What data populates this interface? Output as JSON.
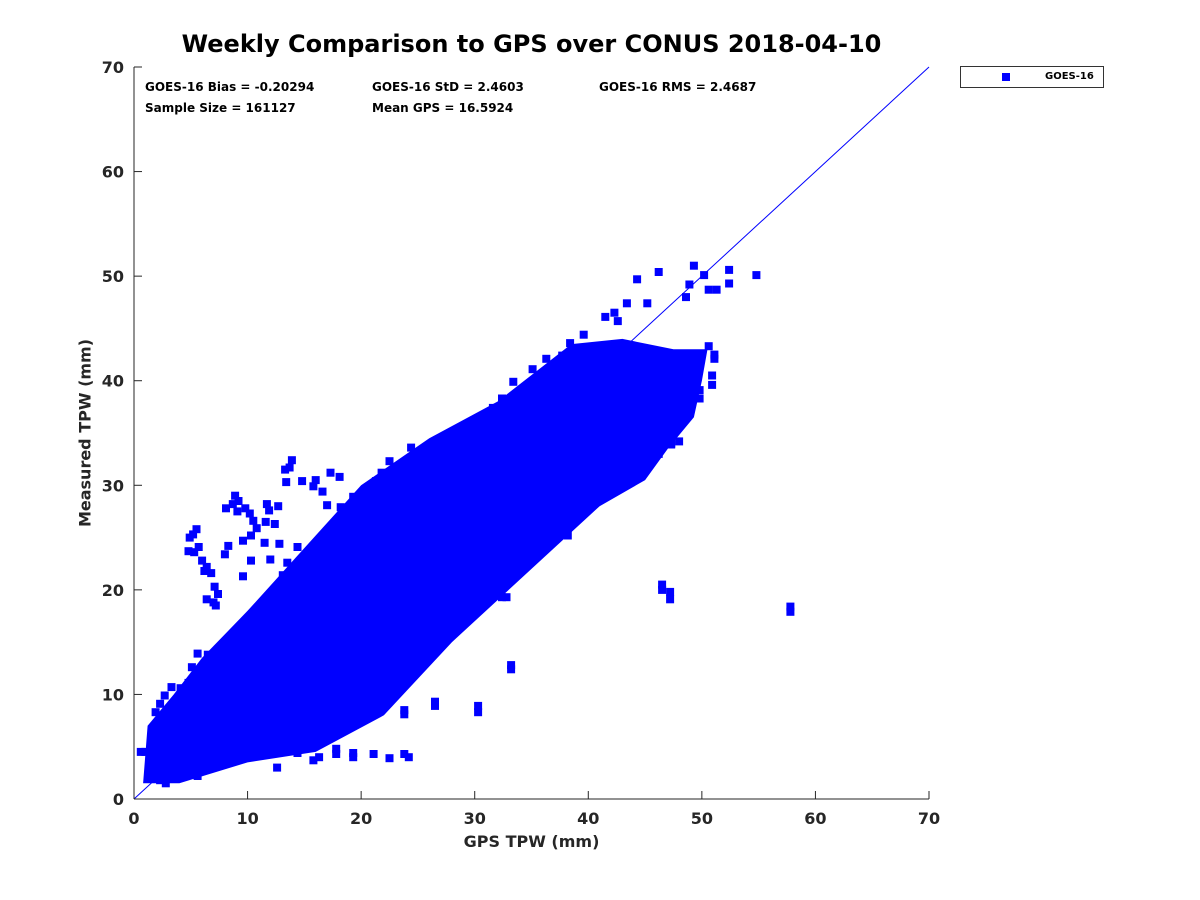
{
  "chart_data": {
    "type": "scatter",
    "title": "Weekly Comparison to GPS over CONUS 2018-04-10",
    "xlabel": "GPS TPW (mm)",
    "ylabel": "Measured TPW (mm)",
    "xlim": [
      0,
      70
    ],
    "ylim": [
      0,
      70
    ],
    "xticks": [
      0,
      10,
      20,
      30,
      40,
      50,
      60,
      70
    ],
    "yticks": [
      0,
      10,
      20,
      30,
      40,
      50,
      60,
      70
    ],
    "grid": false,
    "legend_position": "top-right, outside plot",
    "series": [
      {
        "name": "GOES-16",
        "color": "#0000ff",
        "marker": "square",
        "sample_size": 161127,
        "bias": -0.20294,
        "std": 2.4603
      }
    ],
    "reference_line": {
      "x": [
        0,
        70
      ],
      "y": [
        0,
        70
      ],
      "color": "#0000ff"
    },
    "outliers": [
      [
        57.8,
        17.9
      ],
      [
        57.8,
        18.4
      ],
      [
        46.5,
        20.0
      ],
      [
        46.5,
        20.5
      ],
      [
        47.2,
        19.8
      ],
      [
        47.2,
        19.1
      ],
      [
        33.2,
        12.4
      ],
      [
        33.2,
        12.8
      ],
      [
        30.3,
        8.3
      ],
      [
        30.3,
        8.9
      ],
      [
        26.5,
        8.9
      ],
      [
        26.5,
        9.3
      ],
      [
        23.8,
        8.1
      ],
      [
        23.8,
        8.5
      ],
      [
        20.3,
        7.6
      ],
      [
        19.3,
        9.8
      ],
      [
        24.2,
        4.0
      ],
      [
        23.8,
        4.3
      ],
      [
        22.5,
        3.9
      ],
      [
        21.1,
        4.3
      ],
      [
        19.3,
        4.0
      ],
      [
        19.3,
        4.4
      ],
      [
        17.8,
        4.3
      ],
      [
        17.8,
        4.8
      ],
      [
        16.3,
        4.0
      ],
      [
        15.8,
        3.7
      ],
      [
        14.4,
        4.4
      ],
      [
        13.1,
        5.2
      ],
      [
        12.6,
        3.0
      ],
      [
        1.0,
        4.5
      ],
      [
        0.6,
        4.5
      ],
      [
        1.8,
        5.8
      ],
      [
        5.6,
        2.2
      ],
      [
        54.8,
        50.1
      ],
      [
        52.4,
        50.6
      ],
      [
        52.4,
        49.3
      ],
      [
        49.3,
        51.0
      ],
      [
        50.2,
        50.1
      ],
      [
        46.2,
        50.4
      ],
      [
        44.3,
        49.7
      ],
      [
        51.3,
        48.7
      ],
      [
        50.6,
        48.7
      ],
      [
        48.6,
        48.0
      ],
      [
        48.9,
        49.2
      ],
      [
        45.2,
        47.4
      ],
      [
        50.6,
        43.3
      ],
      [
        51.1,
        42.1
      ],
      [
        50.9,
        40.5
      ],
      [
        50.9,
        39.6
      ],
      [
        51.1,
        42.5
      ],
      [
        49.8,
        39.1
      ],
      [
        49.8,
        38.3
      ],
      [
        46.2,
        36.1
      ],
      [
        48.7,
        39.4
      ],
      [
        48.0,
        34.2
      ],
      [
        47.3,
        34.0
      ],
      [
        46.2,
        33.0
      ],
      [
        44.0,
        32.6
      ],
      [
        47.3,
        33.9
      ],
      [
        42.0,
        29.3
      ],
      [
        41.5,
        30.1
      ],
      [
        40.4,
        30.4
      ],
      [
        39.6,
        29.9
      ],
      [
        38.5,
        28.3
      ],
      [
        36.3,
        27.5
      ],
      [
        38.2,
        25.2
      ],
      [
        36.9,
        25.8
      ],
      [
        36.3,
        26.3
      ],
      [
        35.3,
        25.3
      ],
      [
        33.1,
        23.8
      ],
      [
        33.8,
        23.5
      ],
      [
        32.3,
        21.8
      ],
      [
        33.2,
        21.3
      ],
      [
        32.4,
        19.3
      ],
      [
        32.8,
        19.3
      ],
      [
        31.6,
        19.4
      ],
      [
        30.7,
        18.8
      ],
      [
        28.1,
        20.5
      ],
      [
        27.2,
        19.5
      ],
      [
        26.1,
        20.1
      ],
      [
        26.6,
        19.1
      ],
      [
        25.3,
        19.3
      ],
      [
        26.3,
        17.5
      ],
      [
        26.3,
        16.9
      ],
      [
        26.3,
        16.6
      ],
      [
        26.3,
        15.9
      ],
      [
        23.9,
        16.6
      ],
      [
        24.6,
        15.5
      ],
      [
        22.1,
        15.7
      ],
      [
        20.7,
        13.5
      ],
      [
        21.1,
        15.1
      ],
      [
        20.3,
        13.9
      ],
      [
        19.1,
        11.4
      ],
      [
        18.0,
        9.8
      ],
      [
        17.4,
        11.6
      ],
      [
        16.8,
        10.3
      ],
      [
        16.3,
        10.1
      ],
      [
        15.1,
        9.0
      ],
      [
        15.8,
        9.9
      ],
      [
        14.6,
        8.4
      ],
      [
        5.2,
        25.3
      ],
      [
        4.9,
        25.0
      ],
      [
        5.5,
        25.8
      ],
      [
        4.8,
        23.7
      ],
      [
        5.3,
        23.6
      ],
      [
        5.7,
        24.1
      ],
      [
        6.0,
        22.8
      ],
      [
        6.4,
        22.2
      ],
      [
        6.2,
        21.8
      ],
      [
        6.8,
        21.6
      ],
      [
        7.1,
        20.3
      ],
      [
        7.4,
        19.6
      ],
      [
        6.4,
        19.1
      ],
      [
        7.2,
        18.5
      ],
      [
        7.0,
        18.8
      ],
      [
        8.1,
        27.8
      ],
      [
        8.7,
        28.2
      ],
      [
        9.1,
        27.5
      ],
      [
        8.9,
        29.0
      ],
      [
        9.2,
        28.5
      ],
      [
        9.8,
        27.8
      ],
      [
        10.2,
        27.3
      ],
      [
        10.5,
        26.6
      ],
      [
        10.3,
        25.2
      ],
      [
        10.8,
        25.9
      ],
      [
        11.7,
        28.2
      ],
      [
        11.9,
        27.6
      ],
      [
        11.6,
        26.5
      ],
      [
        12.7,
        28.0
      ],
      [
        12.4,
        26.3
      ],
      [
        13.4,
        30.3
      ],
      [
        13.7,
        31.7
      ],
      [
        13.3,
        31.5
      ],
      [
        13.9,
        32.4
      ],
      [
        14.8,
        30.4
      ],
      [
        15.8,
        29.9
      ],
      [
        16.0,
        30.5
      ],
      [
        16.6,
        29.4
      ],
      [
        17.0,
        28.1
      ],
      [
        17.3,
        31.2
      ],
      [
        18.1,
        30.8
      ],
      [
        18.2,
        27.9
      ],
      [
        19.3,
        28.9
      ],
      [
        19.6,
        28.3
      ],
      [
        20.2,
        26.8
      ],
      [
        20.9,
        28.2
      ],
      [
        21.3,
        30.4
      ],
      [
        21.8,
        31.2
      ],
      [
        22.5,
        32.3
      ],
      [
        23.1,
        31.6
      ],
      [
        24.4,
        33.6
      ],
      [
        25.1,
        32.0
      ],
      [
        24.9,
        30.5
      ],
      [
        26.4,
        31.2
      ],
      [
        27.3,
        32.9
      ],
      [
        28.2,
        32.9
      ],
      [
        29.4,
        33.8
      ],
      [
        30.2,
        36.0
      ],
      [
        31.6,
        37.4
      ],
      [
        32.4,
        38.3
      ],
      [
        33.4,
        39.9
      ],
      [
        35.1,
        41.1
      ],
      [
        36.3,
        42.1
      ],
      [
        36.6,
        40.9
      ],
      [
        37.7,
        42.4
      ],
      [
        38.4,
        43.6
      ],
      [
        39.6,
        44.4
      ],
      [
        41.5,
        46.1
      ],
      [
        42.3,
        46.5
      ],
      [
        42.6,
        45.7
      ],
      [
        43.4,
        47.4
      ],
      [
        9.6,
        24.7
      ],
      [
        8.0,
        23.4
      ],
      [
        8.3,
        24.2
      ],
      [
        9.6,
        21.3
      ],
      [
        10.3,
        22.8
      ],
      [
        11.5,
        24.5
      ],
      [
        12.0,
        22.9
      ],
      [
        12.8,
        24.4
      ],
      [
        13.5,
        22.6
      ],
      [
        13.1,
        21.4
      ],
      [
        14.4,
        24.1
      ],
      [
        14.9,
        22.3
      ],
      [
        14.1,
        19.9
      ],
      [
        16.1,
        24.1
      ],
      [
        16.5,
        22.8
      ],
      [
        15.5,
        20.1
      ],
      [
        17.2,
        25.5
      ],
      [
        17.7,
        23.2
      ],
      [
        6.5,
        13.8
      ],
      [
        5.6,
        13.9
      ],
      [
        5.1,
        12.6
      ],
      [
        4.8,
        11.1
      ],
      [
        4.1,
        10.6
      ],
      [
        3.3,
        10.7
      ],
      [
        2.7,
        9.9
      ],
      [
        2.3,
        9.1
      ],
      [
        1.9,
        8.3
      ],
      [
        3.6,
        4.8
      ],
      [
        2.9,
        3.1
      ],
      [
        4.3,
        3.2
      ],
      [
        5.3,
        4.1
      ],
      [
        6.1,
        4.6
      ],
      [
        7.1,
        4.9
      ],
      [
        2.3,
        1.8
      ],
      [
        1.5,
        2.2
      ],
      [
        2.8,
        1.5
      ]
    ]
  },
  "stats": {
    "bias": "GOES-16 Bias = -0.20294",
    "std": "GOES-16 StD = 2.4603",
    "rms": "GOES-16 RMS = 2.4687",
    "sample_size": "Sample Size = 161127",
    "mean_gps": "Mean GPS = 16.5924"
  },
  "legend": {
    "label": "GOES-16",
    "color": "#0000ff"
  }
}
